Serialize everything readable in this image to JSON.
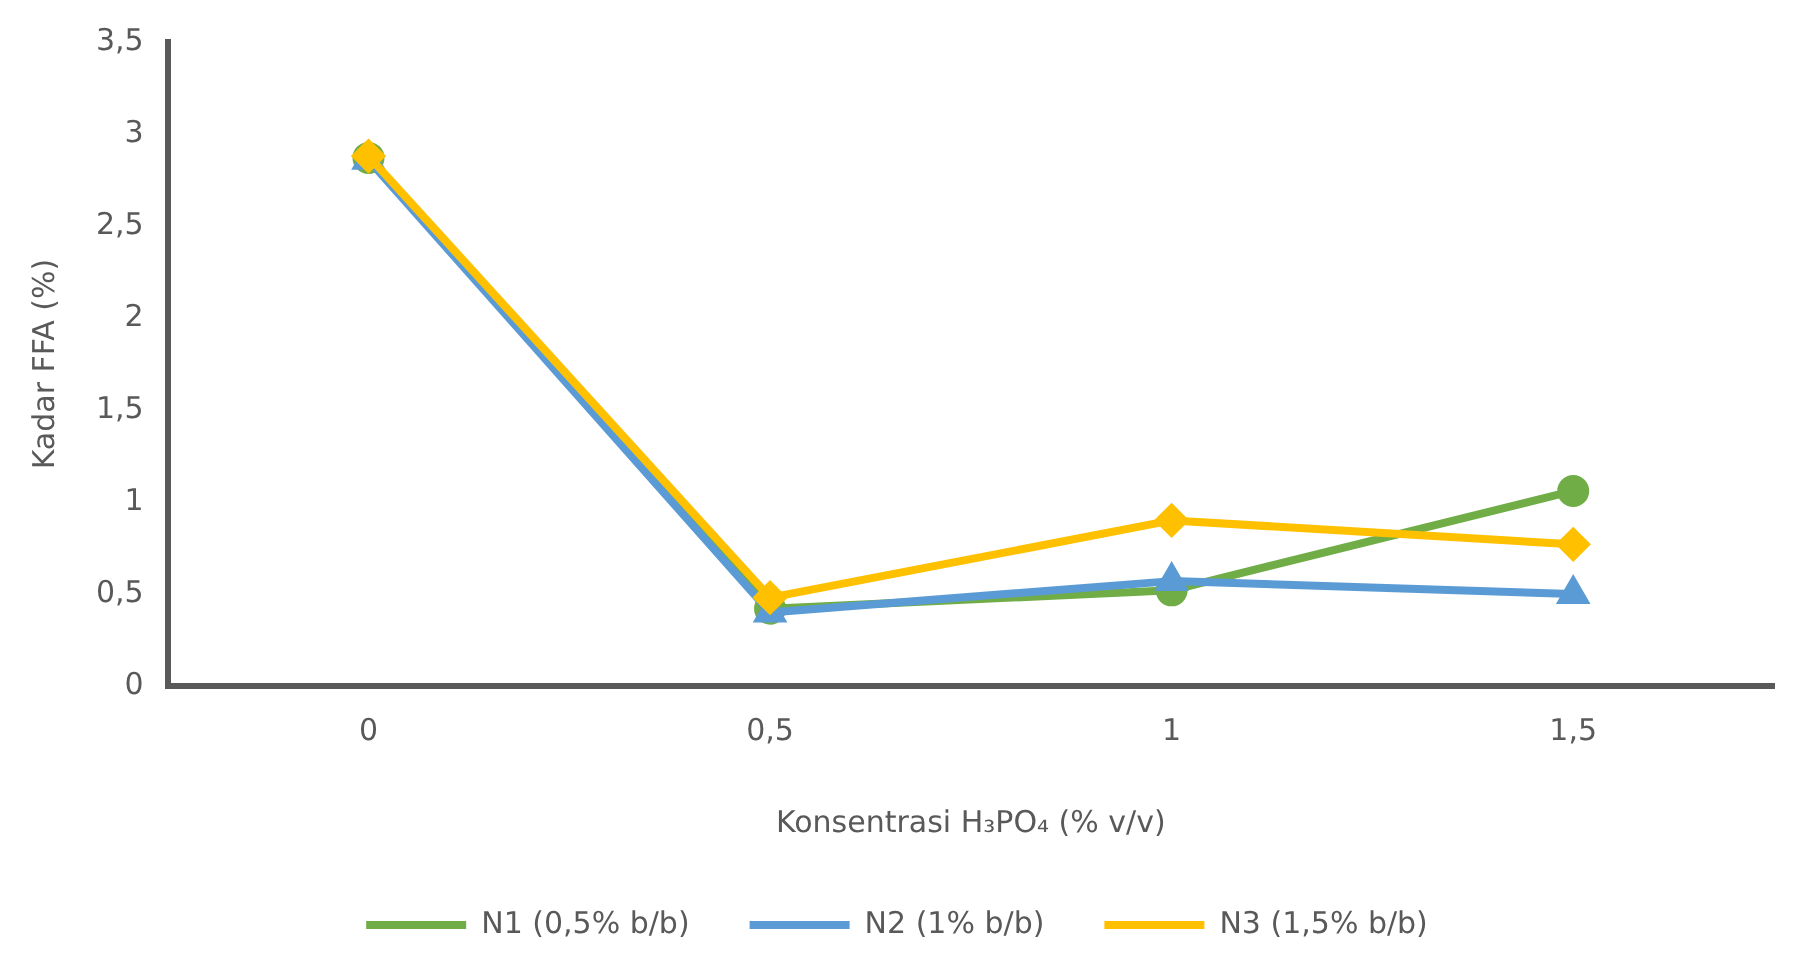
{
  "chart_data": {
    "type": "line",
    "xlabel": "Konsentrasi H₃PO₄ (% v/v)",
    "ylabel": "Kadar FFA (%)",
    "categories": [
      "0",
      "0,5",
      "1",
      "1,5"
    ],
    "series": [
      {
        "name": "N1 (0,5% b/b)",
        "color": "#70ad47",
        "marker": "circle",
        "values": [
          2.87,
          0.42,
          0.52,
          1.06
        ]
      },
      {
        "name": "N2 (1% b/b)",
        "color": "#5b9bd5",
        "marker": "triangle",
        "values": [
          2.86,
          0.4,
          0.57,
          0.5
        ]
      },
      {
        "name": "N3 (1,5% b/b)",
        "color": "#ffc000",
        "marker": "diamond",
        "values": [
          2.88,
          0.48,
          0.9,
          0.77
        ]
      }
    ],
    "ylim": [
      0,
      3.5
    ],
    "yticks": [
      0,
      {
        "value": 0.5,
        "label": "0,5"
      },
      1,
      {
        "value": 1.5,
        "label": "1,5"
      },
      2,
      {
        "value": 2.5,
        "label": "2,5"
      },
      3,
      {
        "value": 3.5,
        "label": "3,5"
      }
    ],
    "grid": false,
    "legend": "bottom",
    "line_style": "solid"
  }
}
